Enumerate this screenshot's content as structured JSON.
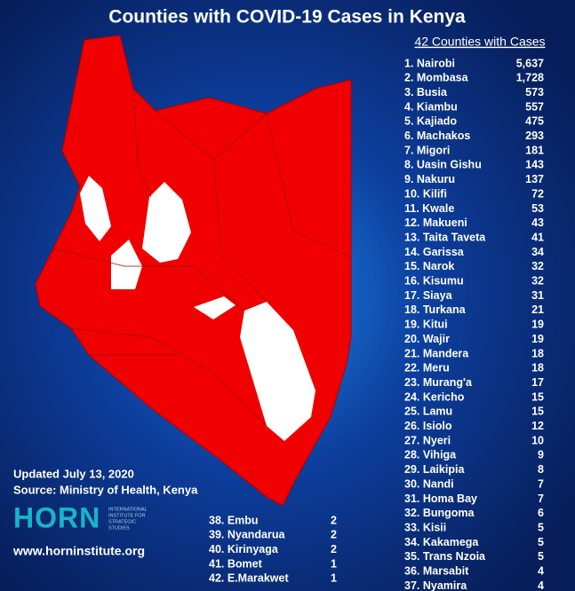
{
  "title": "Counties with COVID-19 Cases in Kenya",
  "list_heading": "42 Counties with Cases",
  "list": [
    {
      "label": "1. Nairobi",
      "value": "5,637"
    },
    {
      "label": "2. Mombasa",
      "value": "1,728"
    },
    {
      "label": "3. Busia",
      "value": "573"
    },
    {
      "label": "4. Kiambu",
      "value": "557"
    },
    {
      "label": "5. Kajiado",
      "value": "475"
    },
    {
      "label": "6. Machakos",
      "value": "293"
    },
    {
      "label": "7. Migori",
      "value": "181"
    },
    {
      "label": "8. Uasin Gishu",
      "value": "143"
    },
    {
      "label": "9. Nakuru",
      "value": "137"
    },
    {
      "label": "10. Kilifi",
      "value": "72"
    },
    {
      "label": "11. Kwale",
      "value": "53"
    },
    {
      "label": "12. Makueni",
      "value": "43"
    },
    {
      "label": "13. Taita Taveta",
      "value": "41"
    },
    {
      "label": "14. Garissa",
      "value": "34"
    },
    {
      "label": "15. Narok",
      "value": "32"
    },
    {
      "label": "16. Kisumu",
      "value": "32"
    },
    {
      "label": "17. Siaya",
      "value": "31"
    },
    {
      "label": "18. Turkana",
      "value": "21"
    },
    {
      "label": "19. Kitui",
      "value": "19"
    },
    {
      "label": "20. Wajir",
      "value": "19"
    },
    {
      "label": "21. Mandera",
      "value": "18"
    },
    {
      "label": "22. Meru",
      "value": "18"
    },
    {
      "label": "23. Murang'a",
      "value": "17"
    },
    {
      "label": "24. Kericho",
      "value": "15"
    },
    {
      "label": "25. Lamu",
      "value": "15"
    },
    {
      "label": "26. Isiolo",
      "value": "12"
    },
    {
      "label": "27. Nyeri",
      "value": "10"
    },
    {
      "label": "28. Vihiga",
      "value": "9"
    },
    {
      "label": "29. Laikipia",
      "value": "8"
    },
    {
      "label": "30. Nandi",
      "value": "7"
    },
    {
      "label": "31. Homa Bay",
      "value": "7"
    },
    {
      "label": "32. Bungoma",
      "value": "6"
    },
    {
      "label": "33. Kisii",
      "value": "5"
    },
    {
      "label": "34. Kakamega",
      "value": "5"
    },
    {
      "label": "35. Trans Nzoia",
      "value": "5"
    },
    {
      "label": "36. Marsabit",
      "value": "4"
    },
    {
      "label": "37. Nyamira",
      "value": "4"
    }
  ],
  "list_more": [
    {
      "label": "38. Embu",
      "value": "2"
    },
    {
      "label": "39. Nyandarua",
      "value": "2"
    },
    {
      "label": "40. Kirinyaga",
      "value": "2"
    },
    {
      "label": "41. Bomet",
      "value": "1"
    },
    {
      "label": "42. E.Marakwet",
      "value": "1"
    }
  ],
  "updated": "Updated July 13, 2020",
  "source": "Source: Ministry of Health, Kenya",
  "logo": {
    "mark": "HORN",
    "line1": "INTERNATIONAL",
    "line2": "INSTITUTE FOR",
    "line3": "STRATEGIC",
    "line4": "STUDIES"
  },
  "website": "www.horninstitute.org"
}
